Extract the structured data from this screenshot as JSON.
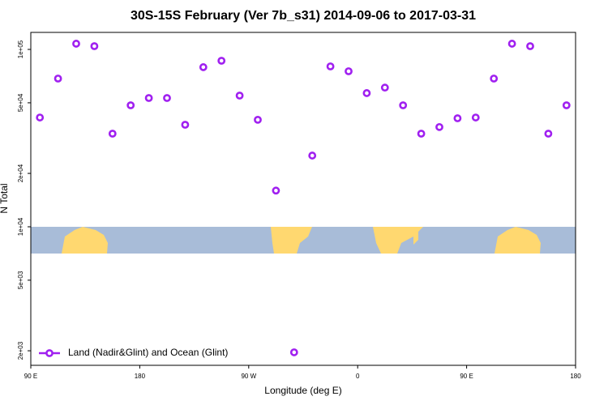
{
  "chart_data": {
    "type": "scatter",
    "title": "30S-15S February (Ver 7b_s31)   2014-09-06 to 2017-03-31",
    "x_label": "Longitude (deg E)",
    "y_label": "N Total",
    "log_y": true,
    "legend": "bottom-left",
    "xlim": [
      90,
      540
    ],
    "xticks": [
      {
        "value": 90,
        "label": "90 E"
      },
      {
        "value": 180,
        "label": "180"
      },
      {
        "value": 270,
        "label": "90 W"
      },
      {
        "value": 360,
        "label": "0"
      },
      {
        "value": 450,
        "label": "90 E"
      },
      {
        "value": 540,
        "label": "180"
      }
    ],
    "ylim": [
      1656,
      124700
    ],
    "yticks": [
      {
        "value": 100000,
        "label": "1e+05"
      },
      {
        "value": 50000,
        "label": "5e+04"
      },
      {
        "value": 20000,
        "label": "2e+04"
      },
      {
        "value": 10000,
        "label": "1e+04"
      },
      {
        "value": 5000,
        "label": "5e+03"
      },
      {
        "value": 2000,
        "label": "2e+03"
      }
    ],
    "series": [
      {
        "name": "Land (Nadir&Glint) and Ocean (Glint)",
        "color": "#a020f0",
        "x": [
          97.5,
          112.5,
          127.5,
          142.5,
          157.5,
          172.5,
          187.5,
          202.5,
          217.5,
          232.5,
          247.5,
          262.5,
          277.5,
          292.5,
          307.5,
          322.5,
          337.5,
          352.5,
          367.5,
          382.5,
          397.5,
          412.5,
          427.5,
          442.5,
          457.5,
          472.5,
          487.5,
          502.5,
          517.5,
          532.5
        ],
        "values": [
          41300,
          68500,
          107700,
          104300,
          33500,
          48400,
          53200,
          53200,
          37600,
          79400,
          86300,
          54900,
          40100,
          16000,
          1960,
          25200,
          80200,
          75300,
          56700,
          60900,
          48400,
          33500,
          36500,
          40900,
          41300,
          68500,
          107700,
          104300,
          33500,
          48400
        ]
      }
    ]
  }
}
